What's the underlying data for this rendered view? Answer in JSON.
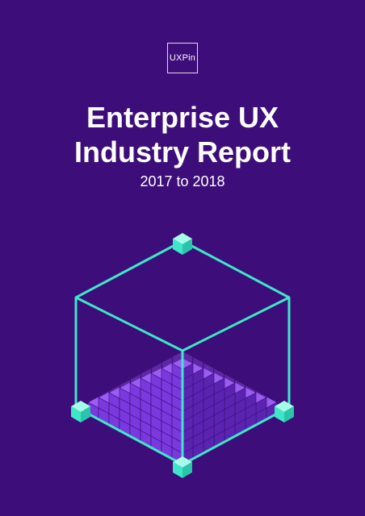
{
  "logo": {
    "text": "UXPin"
  },
  "title": {
    "line1": "Enterprise UX",
    "line2": "Industry Report"
  },
  "subtitle": "2017 to 2018",
  "colors": {
    "background": "#3d0d79",
    "text": "#ffffff",
    "outline": "#3ee6c9",
    "cube_top": "#9a5cf2",
    "cube_left": "#7a38df",
    "cube_right": "#5a24b1"
  }
}
